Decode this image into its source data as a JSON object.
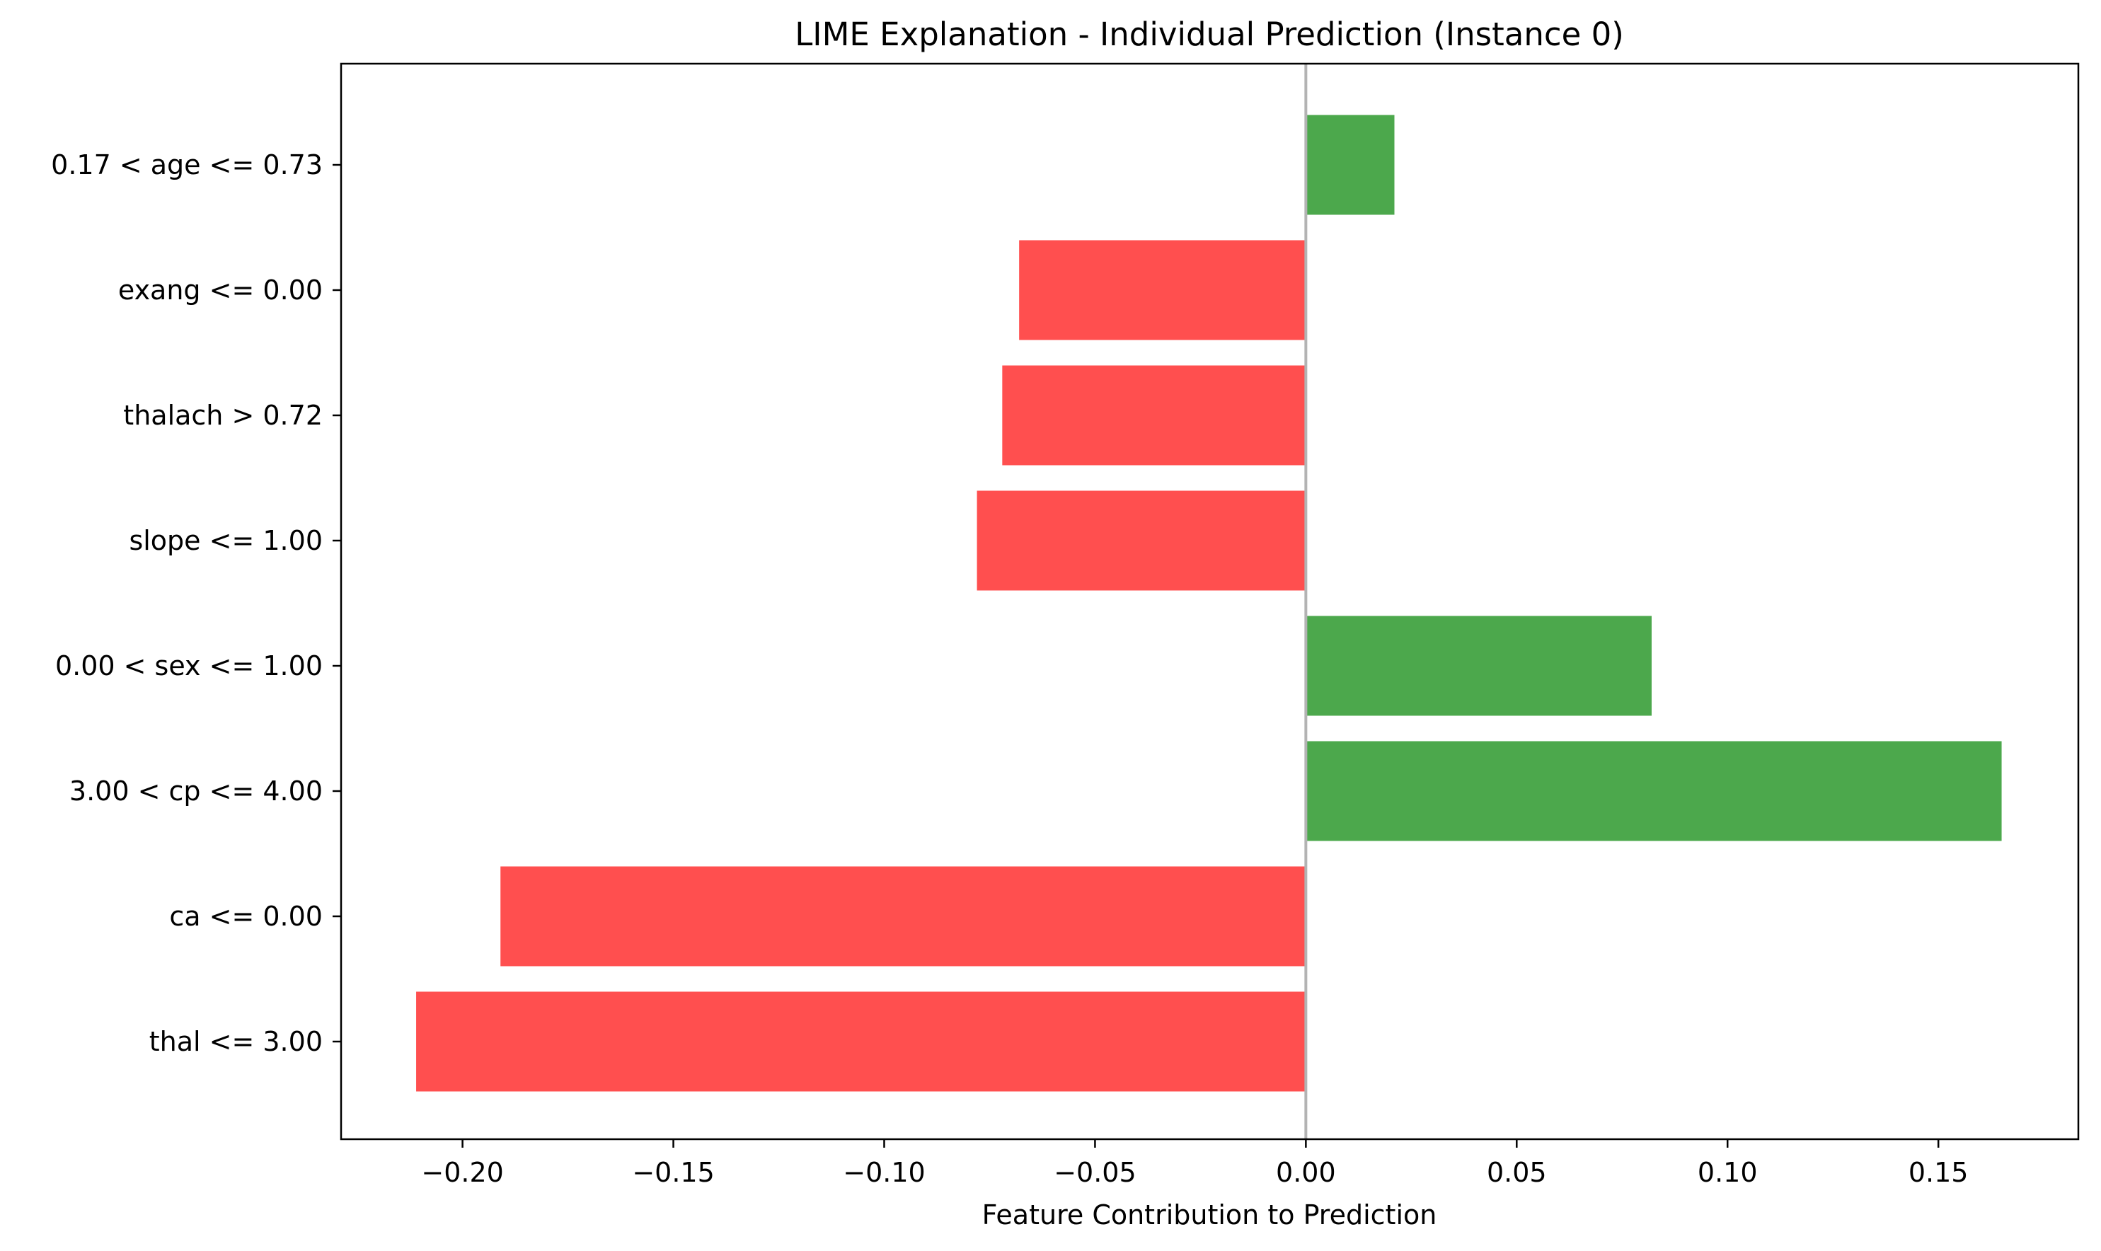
{
  "chart_data": {
    "type": "bar",
    "orientation": "horizontal",
    "title": "LIME Explanation - Individual Prediction (Instance 0)",
    "xlabel": "Feature Contribution to Prediction",
    "ylabel": "",
    "xlim": [
      -0.2288,
      0.1832
    ],
    "x_ticks": [
      -0.2,
      -0.15,
      -0.1,
      -0.05,
      0.0,
      0.05,
      0.1,
      0.15
    ],
    "x_tick_labels": [
      "−0.20",
      "−0.15",
      "−0.10",
      "−0.05",
      "0.00",
      "0.05",
      "0.10",
      "0.15"
    ],
    "categories": [
      "0.17 < age <= 0.73",
      "exang <= 0.00",
      "thalach > 0.72",
      "slope <= 1.00",
      "0.00 < sex <= 1.00",
      "3.00 < cp <= 4.00",
      "ca <= 0.00",
      "thal <= 3.00"
    ],
    "values": [
      0.021,
      -0.068,
      -0.072,
      -0.078,
      0.082,
      0.165,
      -0.191,
      -0.211
    ],
    "grid": false,
    "legend": "none",
    "colors": {
      "positive": "#4ca84c",
      "negative": "#ff4f4f",
      "zero_line": "#b3b3b3",
      "axes": "#000000"
    }
  }
}
